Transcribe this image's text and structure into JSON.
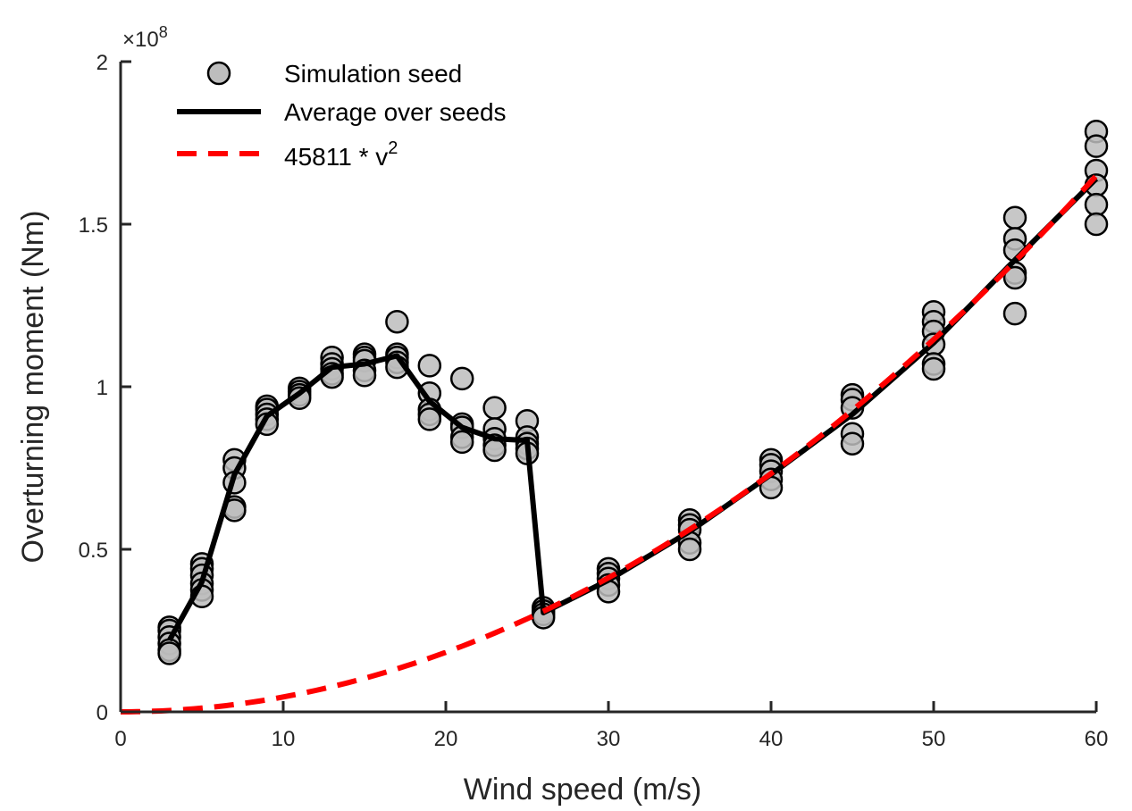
{
  "chart_data": {
    "type": "scatter",
    "xlabel": "Wind speed (m/s)",
    "ylabel": "Overturning moment (Nm)",
    "y_multiplier": {
      "prefix": "×10",
      "exponent": "8"
    },
    "xlim": [
      0,
      60
    ],
    "ylim": [
      0,
      2
    ],
    "x_ticks": [
      0,
      10,
      20,
      30,
      40,
      50,
      60
    ],
    "x_tick_labels": [
      "0",
      "10",
      "20",
      "30",
      "40",
      "50",
      "60"
    ],
    "y_ticks": [
      0,
      0.5,
      1,
      1.5,
      2
    ],
    "y_tick_labels": [
      "0",
      "0.5",
      "1",
      "1.5",
      "2"
    ],
    "grid": false,
    "legend_position": "top-left",
    "legend": [
      {
        "label": "Simulation seed",
        "kind": "marker"
      },
      {
        "label": "Average over seeds",
        "kind": "line"
      },
      {
        "label_main": "45811 * v",
        "label_sup": "2",
        "kind": "dashed"
      }
    ],
    "series": [
      {
        "name": "Simulation seed",
        "kind": "scatter",
        "color": "#bdbdbd",
        "edge_color": "#000000",
        "points": [
          [
            3,
            0.26
          ],
          [
            3,
            0.25
          ],
          [
            3,
            0.23
          ],
          [
            3,
            0.21
          ],
          [
            3,
            0.19
          ],
          [
            3,
            0.18
          ],
          [
            5,
            0.455
          ],
          [
            5,
            0.44
          ],
          [
            5,
            0.42
          ],
          [
            5,
            0.395
          ],
          [
            5,
            0.375
          ],
          [
            5,
            0.355
          ],
          [
            7,
            0.775
          ],
          [
            7,
            0.75
          ],
          [
            7,
            0.705
          ],
          [
            7,
            0.63
          ],
          [
            7,
            0.62
          ],
          [
            9,
            0.94
          ],
          [
            9,
            0.93
          ],
          [
            9,
            0.915
          ],
          [
            9,
            0.9
          ],
          [
            9,
            0.885
          ],
          [
            11,
            0.995
          ],
          [
            11,
            0.985
          ],
          [
            11,
            0.975
          ],
          [
            11,
            0.965
          ],
          [
            13,
            1.09
          ],
          [
            13,
            1.07
          ],
          [
            13,
            1.055
          ],
          [
            13,
            1.04
          ],
          [
            13,
            1.03
          ],
          [
            15,
            1.1
          ],
          [
            15,
            1.09
          ],
          [
            15,
            1.08
          ],
          [
            15,
            1.05
          ],
          [
            15,
            1.035
          ],
          [
            17,
            1.2
          ],
          [
            17,
            1.1
          ],
          [
            17,
            1.09
          ],
          [
            17,
            1.075
          ],
          [
            17,
            1.06
          ],
          [
            19,
            1.065
          ],
          [
            19,
            0.98
          ],
          [
            19,
            0.93
          ],
          [
            19,
            0.915
          ],
          [
            19,
            0.9
          ],
          [
            21,
            1.025
          ],
          [
            21,
            0.885
          ],
          [
            21,
            0.875
          ],
          [
            21,
            0.845
          ],
          [
            21,
            0.83
          ],
          [
            23,
            0.935
          ],
          [
            23,
            0.87
          ],
          [
            23,
            0.84
          ],
          [
            23,
            0.82
          ],
          [
            23,
            0.805
          ],
          [
            25,
            0.895
          ],
          [
            25,
            0.845
          ],
          [
            25,
            0.825
          ],
          [
            25,
            0.81
          ],
          [
            25,
            0.795
          ],
          [
            26,
            0.32
          ],
          [
            26,
            0.31
          ],
          [
            26,
            0.3
          ],
          [
            26,
            0.29
          ],
          [
            30,
            0.44
          ],
          [
            30,
            0.425
          ],
          [
            30,
            0.41
          ],
          [
            30,
            0.39
          ],
          [
            30,
            0.37
          ],
          [
            35,
            0.59
          ],
          [
            35,
            0.575
          ],
          [
            35,
            0.56
          ],
          [
            35,
            0.52
          ],
          [
            35,
            0.5
          ],
          [
            40,
            0.775
          ],
          [
            40,
            0.76
          ],
          [
            40,
            0.74
          ],
          [
            40,
            0.715
          ],
          [
            40,
            0.69
          ],
          [
            45,
            0.975
          ],
          [
            45,
            0.96
          ],
          [
            45,
            0.935
          ],
          [
            45,
            0.855
          ],
          [
            45,
            0.825
          ],
          [
            50,
            1.23
          ],
          [
            50,
            1.2
          ],
          [
            50,
            1.17
          ],
          [
            50,
            1.13
          ],
          [
            50,
            1.07
          ],
          [
            50,
            1.055
          ],
          [
            55,
            1.52
          ],
          [
            55,
            1.455
          ],
          [
            55,
            1.42
          ],
          [
            55,
            1.35
          ],
          [
            55,
            1.335
          ],
          [
            55,
            1.225
          ],
          [
            60,
            1.785
          ],
          [
            60,
            1.74
          ],
          [
            60,
            1.665
          ],
          [
            60,
            1.62
          ],
          [
            60,
            1.56
          ],
          [
            60,
            1.5
          ]
        ]
      },
      {
        "name": "Average over seeds",
        "kind": "line",
        "color": "#000000",
        "x": [
          3,
          5,
          7,
          9,
          11,
          13,
          15,
          17,
          19,
          21,
          23,
          25,
          26,
          30,
          35,
          40,
          45,
          50,
          55,
          60
        ],
        "y": [
          0.22,
          0.4,
          0.73,
          0.91,
          0.98,
          1.06,
          1.07,
          1.095,
          0.955,
          0.875,
          0.84,
          0.835,
          0.305,
          0.405,
          0.555,
          0.73,
          0.915,
          1.135,
          1.39,
          1.64
        ]
      },
      {
        "name": "45811 * v^2",
        "kind": "dashed",
        "color": "#ff0000",
        "coefficient": 45811,
        "x_range": [
          0,
          60
        ]
      }
    ]
  }
}
